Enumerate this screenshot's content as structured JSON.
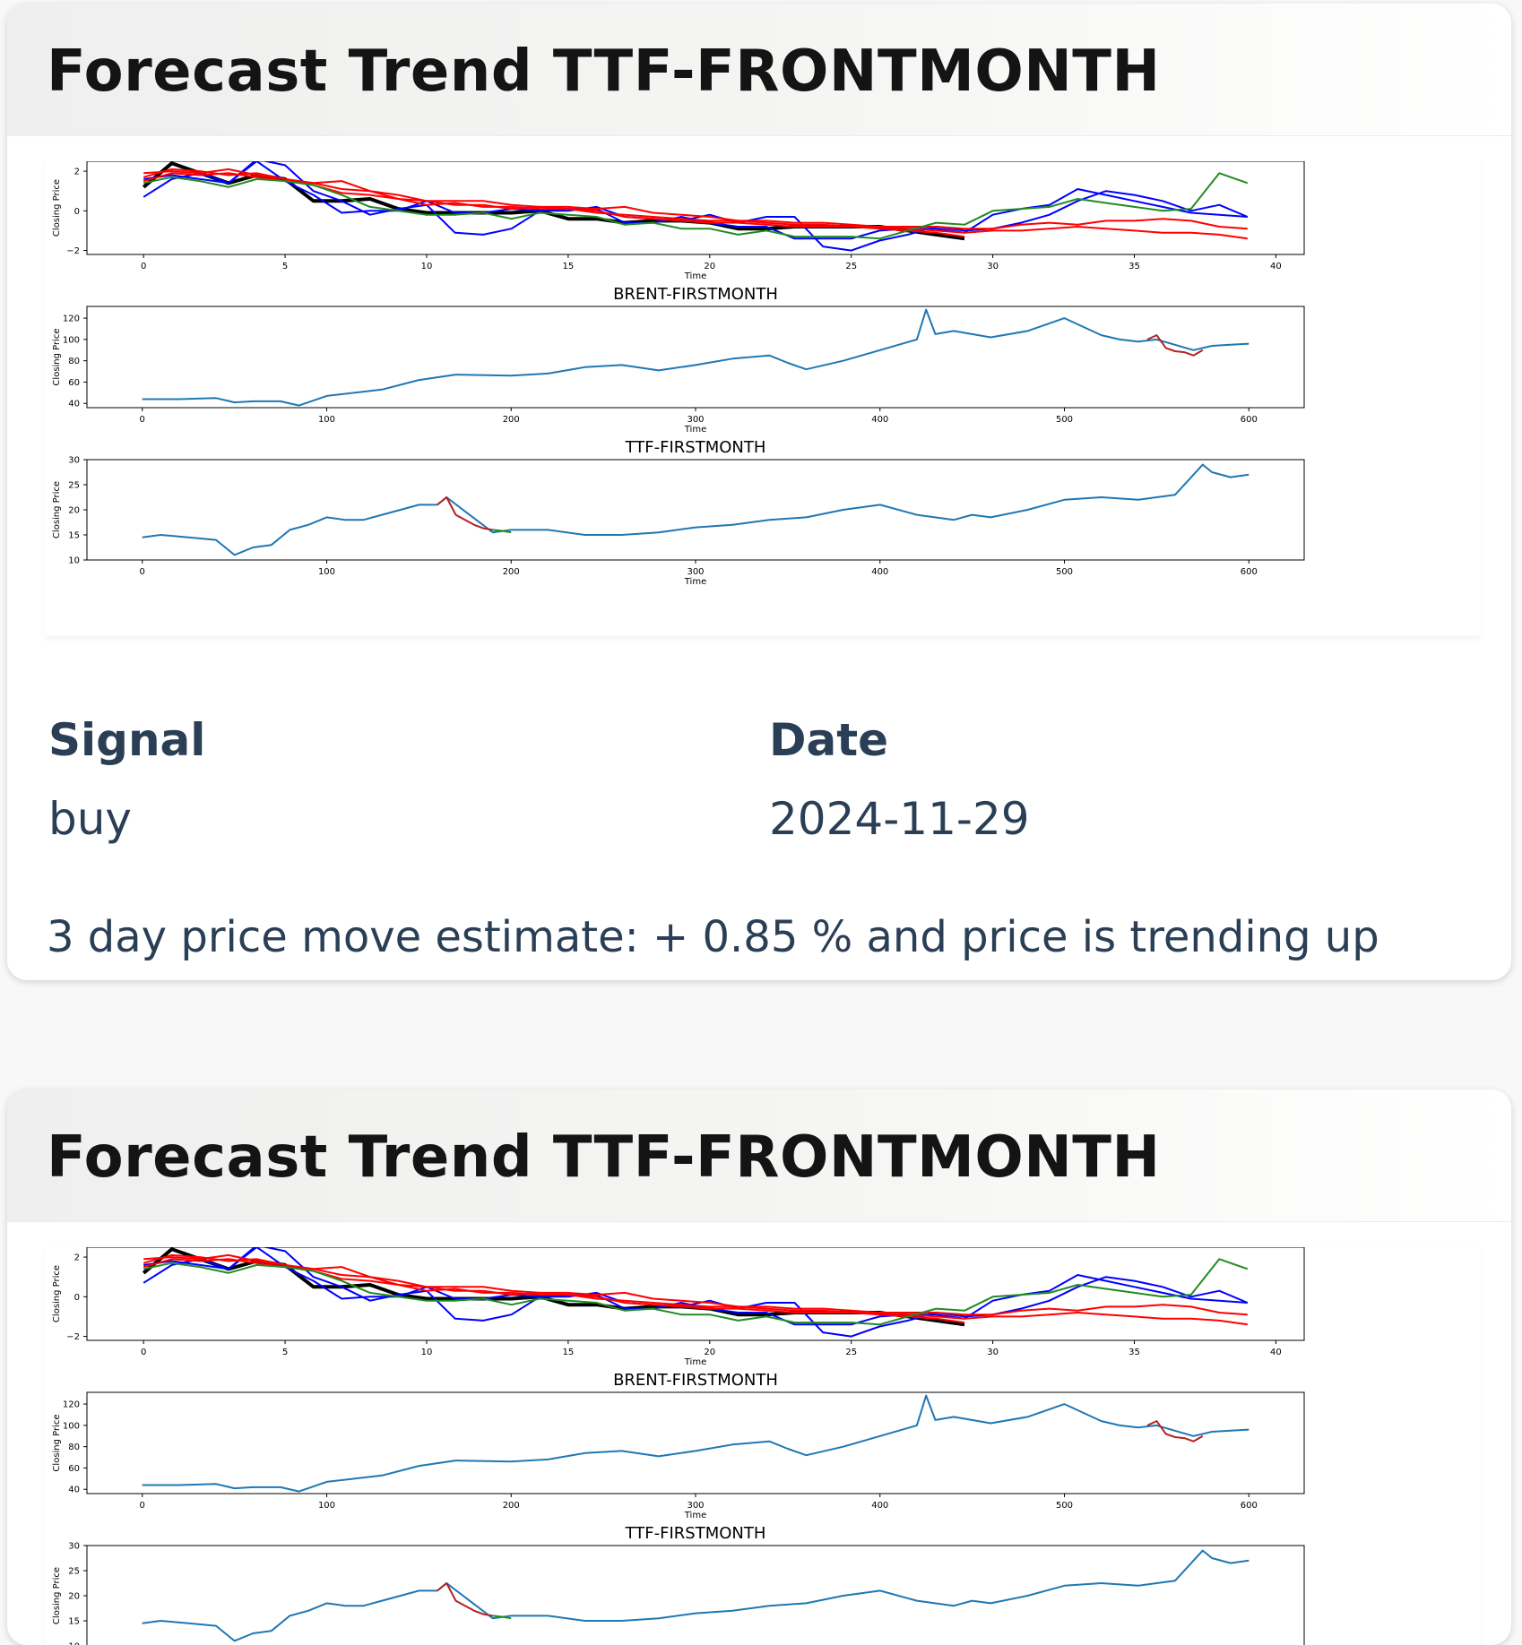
{
  "cards": [
    {
      "title": "Forecast Trend TTF-FRONTMONTH",
      "signal_label": "Signal",
      "signal_value": "buy",
      "date_label": "Date",
      "date_value": "2024-11-29",
      "estimate_text": "3 day price move estimate: + 0.85 % and price is trending up"
    },
    {
      "title": "Forecast Trend TTF-FRONTMONTH"
    }
  ],
  "chart_data": [
    {
      "type": "line",
      "title": "",
      "xlabel": "Time",
      "ylabel": "Closing Price",
      "xlim": [
        -2,
        41
      ],
      "ylim": [
        -2.2,
        2.5
      ],
      "xticks": [
        0,
        5,
        10,
        15,
        20,
        25,
        30,
        35,
        40
      ],
      "yticks": [
        -2,
        0,
        2
      ],
      "series": [
        {
          "color": "#000000",
          "width": 4,
          "x": [
            0,
            1,
            2,
            3,
            4,
            5,
            6,
            7,
            8,
            9,
            10,
            11,
            12,
            13,
            14,
            15,
            16,
            17,
            18,
            19,
            20,
            21,
            22,
            23,
            24,
            25,
            26,
            27,
            28,
            29
          ],
          "y": [
            1.2,
            2.4,
            1.9,
            1.4,
            1.8,
            1.6,
            0.5,
            0.5,
            0.6,
            0.1,
            -0.1,
            -0.1,
            -0.1,
            -0.1,
            0.0,
            -0.4,
            -0.4,
            -0.6,
            -0.5,
            -0.5,
            -0.6,
            -0.9,
            -0.9,
            -0.8,
            -0.8,
            -0.8,
            -0.8,
            -1.0,
            -1.2,
            -1.4
          ]
        },
        {
          "color": "#0000ff",
          "width": 2,
          "x": [
            0,
            1,
            2,
            3,
            4,
            5,
            6,
            7,
            8,
            9,
            10,
            11,
            12,
            13,
            14,
            15,
            16,
            17,
            18,
            19,
            20,
            21,
            22,
            23,
            24,
            25,
            26,
            27,
            28,
            29,
            30,
            31,
            32,
            33,
            34,
            35,
            36,
            37,
            38,
            39
          ],
          "y": [
            0.7,
            1.6,
            1.9,
            1.4,
            2.5,
            1.5,
            0.8,
            -0.1,
            0.0,
            0.0,
            0.5,
            -0.1,
            -0.1,
            0.1,
            0.0,
            0.0,
            0.2,
            -0.3,
            -0.4,
            -0.5,
            -0.2,
            -0.6,
            -0.3,
            -0.3,
            -1.8,
            -2.0,
            -1.5,
            -1.2,
            -0.8,
            -1.0,
            -0.9,
            -0.6,
            -0.2,
            0.5,
            1.0,
            0.8,
            0.5,
            0.0,
            0.3,
            -0.3
          ]
        },
        {
          "color": "#0000ff",
          "width": 2,
          "x": [
            0,
            1,
            2,
            3,
            4,
            5,
            6,
            7,
            8,
            9,
            10,
            11,
            12,
            13,
            14,
            15,
            16,
            17,
            18,
            19,
            20,
            21,
            22,
            23,
            24,
            25,
            26,
            27,
            28,
            29,
            30,
            31,
            32,
            33,
            34,
            35,
            36,
            37,
            38,
            39
          ],
          "y": [
            1.6,
            1.8,
            1.6,
            1.4,
            2.6,
            2.3,
            1.0,
            0.5,
            -0.2,
            0.1,
            0.3,
            -1.1,
            -1.2,
            -0.9,
            0.0,
            0.1,
            0.1,
            -0.6,
            -0.6,
            -0.3,
            -0.6,
            -0.8,
            -0.8,
            -1.4,
            -1.4,
            -1.4,
            -1.0,
            -0.9,
            -0.9,
            -1.1,
            -0.2,
            0.1,
            0.3,
            1.1,
            0.8,
            0.5,
            0.2,
            -0.1,
            -0.2,
            -0.3
          ]
        },
        {
          "color": "#ff0000",
          "width": 2,
          "x": [
            0,
            1,
            2,
            3,
            4,
            5,
            6,
            7,
            8,
            9,
            10,
            11,
            12,
            13,
            14,
            15,
            16,
            17,
            18,
            19,
            20,
            21,
            22,
            23,
            24,
            25,
            26,
            27,
            28,
            29,
            30,
            31,
            32,
            33,
            34,
            35,
            36,
            37,
            38,
            39
          ],
          "y": [
            1.9,
            2.0,
            1.9,
            2.1,
            1.8,
            1.6,
            1.4,
            1.5,
            1.0,
            0.8,
            0.5,
            0.5,
            0.5,
            0.3,
            0.2,
            0.2,
            0.1,
            0.2,
            -0.1,
            -0.2,
            -0.3,
            -0.5,
            -0.5,
            -0.6,
            -0.6,
            -0.7,
            -0.8,
            -0.8,
            -0.8,
            -0.9,
            -0.9,
            -0.7,
            -0.6,
            -0.7,
            -0.5,
            -0.5,
            -0.4,
            -0.5,
            -0.8,
            -0.9
          ]
        },
        {
          "color": "#ff0000",
          "width": 2,
          "x": [
            0,
            1,
            2,
            3,
            4,
            5,
            6,
            7,
            8,
            9,
            10,
            11,
            12,
            13,
            14,
            15,
            16,
            17,
            18,
            19,
            20,
            21,
            22,
            23,
            24,
            25,
            26,
            27,
            28,
            29,
            30,
            31,
            32,
            33,
            34,
            35,
            36,
            37,
            38,
            39
          ],
          "y": [
            1.7,
            2.1,
            2.0,
            1.8,
            1.9,
            1.6,
            1.3,
            0.9,
            0.8,
            0.6,
            0.3,
            0.4,
            0.2,
            0.2,
            0.1,
            0.1,
            -0.1,
            -0.2,
            -0.3,
            -0.4,
            -0.5,
            -0.5,
            -0.6,
            -0.7,
            -0.7,
            -0.8,
            -0.8,
            -0.9,
            -1.0,
            -1.1,
            -1.0,
            -1.0,
            -0.9,
            -0.8,
            -0.9,
            -1.0,
            -1.1,
            -1.1,
            -1.2,
            -1.4
          ]
        },
        {
          "color": "#ff0000",
          "width": 2,
          "x": [
            0,
            1,
            2,
            3,
            4,
            5,
            6,
            7,
            8,
            9,
            10,
            11,
            12,
            13,
            14,
            15,
            16,
            17,
            18,
            19,
            20,
            21,
            22,
            23,
            24,
            25,
            26,
            27,
            28,
            29
          ],
          "y": [
            1.5,
            1.9,
            1.8,
            1.9,
            1.7,
            1.5,
            1.4,
            1.1,
            1.0,
            0.6,
            0.5,
            0.3,
            0.3,
            0.1,
            0.2,
            0.1,
            0.0,
            -0.3,
            -0.4,
            -0.5,
            -0.6,
            -0.6,
            -0.7,
            -0.8,
            -0.8,
            -0.8,
            -0.9,
            -1.0,
            -1.1,
            -1.3
          ]
        },
        {
          "color": "#228b22",
          "width": 2,
          "x": [
            0,
            1,
            2,
            3,
            4,
            5,
            6,
            7,
            8,
            9,
            10,
            11,
            12,
            13,
            14,
            15,
            16,
            17,
            18,
            19,
            20,
            21,
            22,
            23,
            24,
            25,
            26,
            27,
            28,
            29,
            30,
            31,
            32,
            33,
            34,
            35,
            36,
            37,
            38,
            39
          ],
          "y": [
            1.4,
            1.7,
            1.5,
            1.2,
            1.6,
            1.5,
            1.3,
            0.8,
            0.2,
            0.0,
            -0.2,
            -0.2,
            -0.1,
            -0.4,
            -0.1,
            -0.2,
            -0.3,
            -0.7,
            -0.6,
            -0.9,
            -0.9,
            -1.2,
            -1.0,
            -1.3,
            -1.3,
            -1.3,
            -1.4,
            -1.0,
            -0.6,
            -0.7,
            0.0,
            0.1,
            0.2,
            0.6,
            0.4,
            0.2,
            0.0,
            0.1,
            1.9,
            1.4
          ]
        }
      ]
    },
    {
      "type": "line",
      "title": "BRENT-FIRSTMONTH",
      "xlabel": "Time",
      "ylabel": "Closing Price",
      "xlim": [
        -30,
        630
      ],
      "ylim": [
        36,
        131
      ],
      "xticks": [
        0,
        100,
        200,
        300,
        400,
        500,
        600
      ],
      "yticks": [
        40,
        60,
        80,
        100,
        120
      ],
      "series": [
        {
          "color": "#1f77b4",
          "width": 2,
          "x": [
            0,
            20,
            40,
            50,
            60,
            75,
            85,
            100,
            130,
            150,
            170,
            200,
            220,
            240,
            260,
            280,
            300,
            320,
            340,
            350,
            360,
            380,
            400,
            420,
            425,
            430,
            440,
            460,
            480,
            500,
            520,
            530,
            540,
            550,
            570,
            580,
            590,
            600
          ],
          "y": [
            44,
            44,
            45,
            41,
            42,
            42,
            38,
            47,
            53,
            62,
            67,
            66,
            68,
            74,
            76,
            71,
            76,
            82,
            85,
            78,
            72,
            80,
            90,
            100,
            128,
            105,
            108,
            102,
            108,
            120,
            104,
            100,
            98,
            100,
            90,
            94,
            95,
            96
          ]
        },
        {
          "color": "#b22222",
          "width": 2,
          "x": [
            545,
            550,
            555,
            560,
            565,
            570,
            575
          ],
          "y": [
            100,
            104,
            92,
            89,
            88,
            85,
            90
          ]
        }
      ]
    },
    {
      "type": "line",
      "title": "TTF-FIRSTMONTH",
      "xlabel": "Time",
      "ylabel": "Closing Price",
      "xlim": [
        -30,
        630
      ],
      "ylim": [
        10,
        30
      ],
      "xticks": [
        0,
        100,
        200,
        300,
        400,
        500,
        600
      ],
      "yticks": [
        10,
        15,
        20,
        25,
        30
      ],
      "series": [
        {
          "color": "#1f77b4",
          "width": 2,
          "x": [
            0,
            10,
            25,
            40,
            50,
            60,
            70,
            80,
            90,
            100,
            110,
            120,
            130,
            140,
            150,
            160,
            165,
            190,
            200,
            220,
            240,
            260,
            280,
            300,
            320,
            340,
            360,
            380,
            400,
            420,
            440,
            450,
            460,
            480,
            500,
            520,
            540,
            550,
            560,
            570,
            575,
            580,
            590,
            600
          ],
          "y": [
            14.5,
            15,
            14.5,
            14,
            11,
            12.5,
            13,
            16,
            17,
            18.5,
            18,
            18,
            19,
            20,
            21,
            21,
            22.5,
            15.5,
            16,
            16,
            15,
            15,
            15.5,
            16.5,
            17,
            18,
            18.5,
            20,
            21,
            19,
            18,
            19,
            18.5,
            20,
            22,
            22.5,
            22,
            22.5,
            23,
            27,
            29,
            27.5,
            26.5,
            27
          ]
        },
        {
          "color": "#b22222",
          "width": 2,
          "x": [
            160,
            165,
            170,
            175,
            180,
            185,
            190
          ],
          "y": [
            21,
            22.5,
            19,
            18,
            17,
            16.3,
            16
          ]
        },
        {
          "color": "#228b22",
          "width": 2,
          "x": [
            190,
            195,
            200
          ],
          "y": [
            16,
            15.8,
            15.5
          ]
        }
      ]
    }
  ]
}
